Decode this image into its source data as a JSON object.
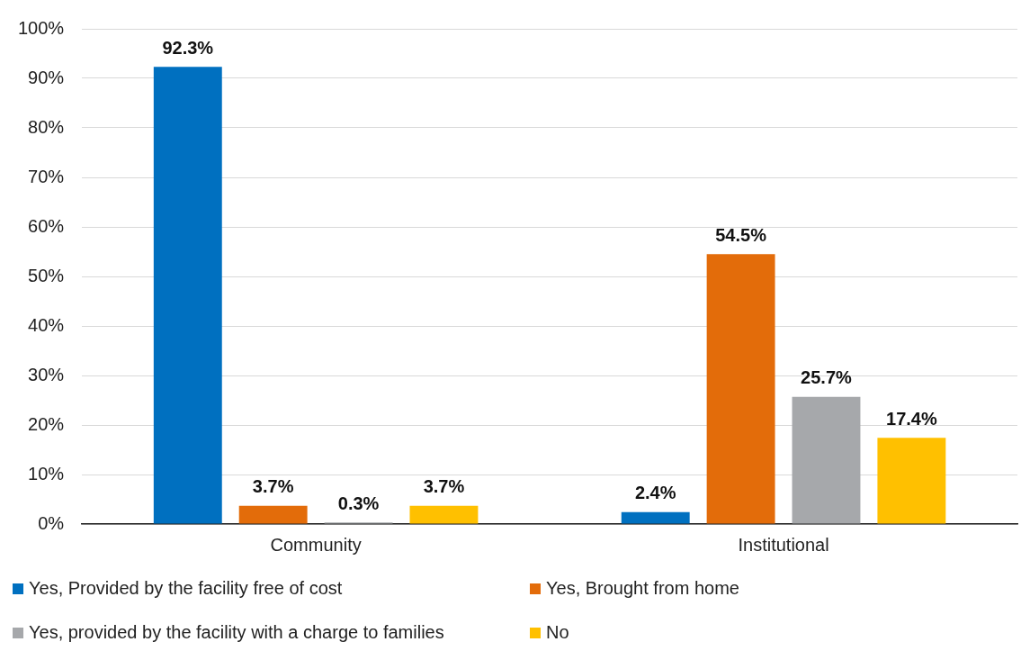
{
  "chart_data": {
    "type": "bar",
    "categories": [
      "Community",
      "Institutional"
    ],
    "series": [
      {
        "name": "Yes, Provided by the facility free of cost",
        "color": "#0070c0",
        "values": [
          92.3,
          2.4
        ],
        "value_labels": [
          "92.3%",
          "2.4%"
        ]
      },
      {
        "name": "Yes, Brought from home",
        "color": "#e36c0a",
        "values": [
          3.7,
          54.5
        ],
        "value_labels": [
          "3.7%",
          "54.5%"
        ]
      },
      {
        "name": "Yes, provided by the facility with a charge to families",
        "color": "#a6a8ab",
        "values": [
          0.3,
          25.7
        ],
        "value_labels": [
          "0.3%",
          "25.7%"
        ]
      },
      {
        "name": "No",
        "color": "#ffc000",
        "values": [
          3.7,
          17.4
        ],
        "value_labels": [
          "3.7%",
          "17.4%"
        ]
      }
    ],
    "ylim": [
      0,
      100
    ],
    "yticks": [
      {
        "value": 0,
        "label": "0%"
      },
      {
        "value": 10,
        "label": "10%"
      },
      {
        "value": 20,
        "label": "20%"
      },
      {
        "value": 30,
        "label": "30%"
      },
      {
        "value": 40,
        "label": "40%"
      },
      {
        "value": 50,
        "label": "50%"
      },
      {
        "value": 60,
        "label": "60%"
      },
      {
        "value": 70,
        "label": "70%"
      },
      {
        "value": 80,
        "label": "80%"
      },
      {
        "value": 90,
        "label": "90%"
      },
      {
        "value": 100,
        "label": "100%"
      }
    ],
    "grid": "y",
    "legend": "bottom"
  }
}
